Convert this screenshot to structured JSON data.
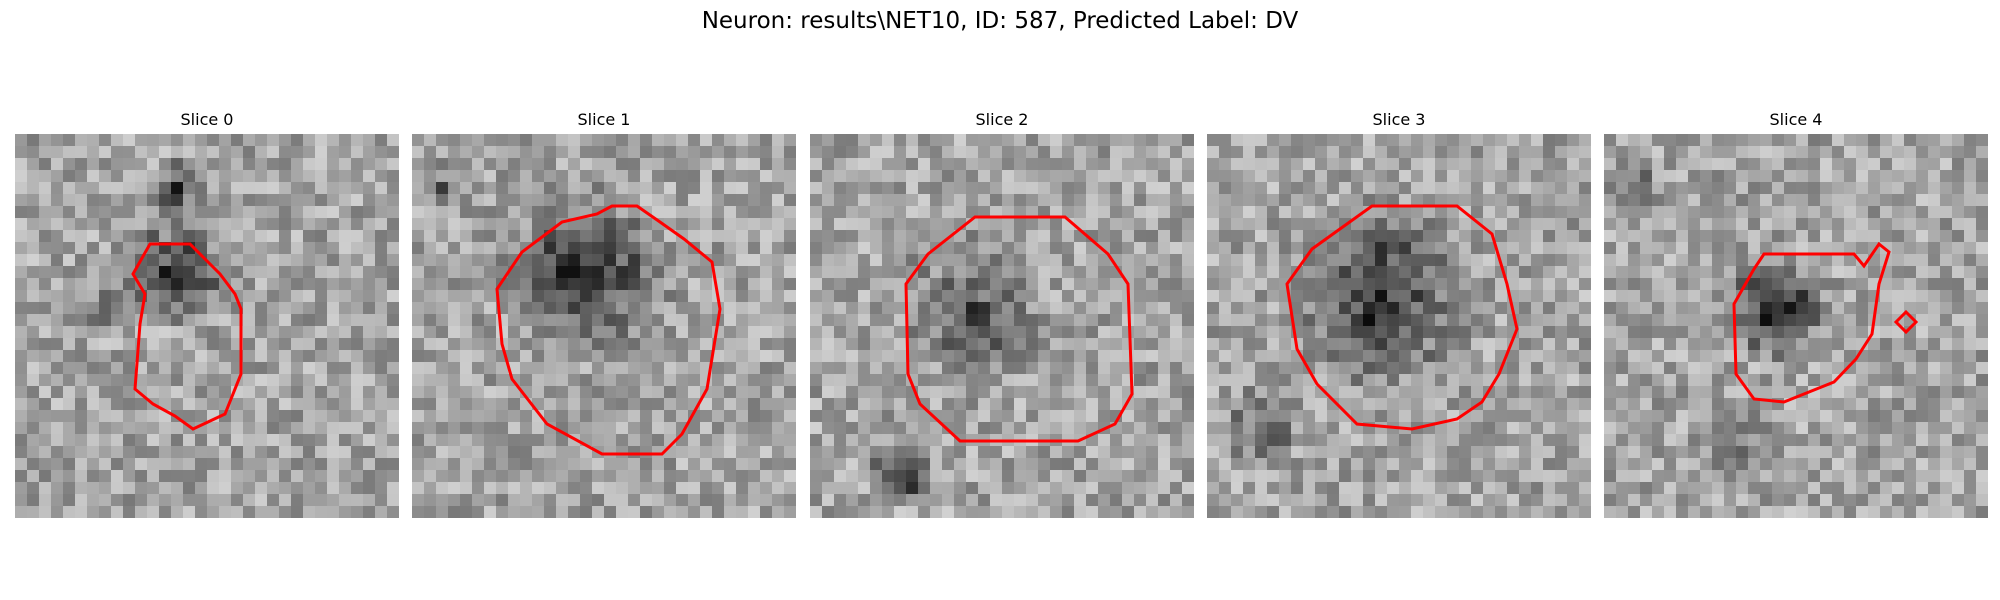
{
  "figure": {
    "title": "Neuron: results\\NET10, ID: 587, Predicted Label: DV"
  },
  "panels": [
    {
      "title": "Slice 0"
    },
    {
      "title": "Slice 1"
    },
    {
      "title": "Slice 2"
    },
    {
      "title": "Slice 3"
    },
    {
      "title": "Slice 4"
    }
  ],
  "colors": {
    "contour": "#ff0000",
    "background": "#ffffff"
  },
  "image": {
    "colormap": "grayscale",
    "grid_size": [
      32,
      32
    ]
  }
}
